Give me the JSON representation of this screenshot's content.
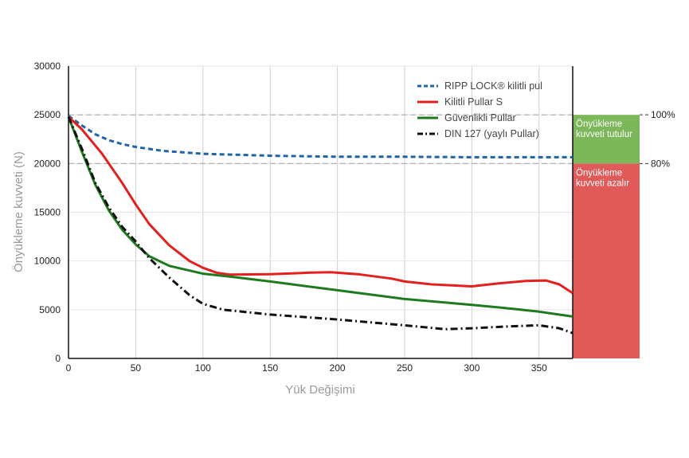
{
  "chart_data": {
    "type": "line",
    "xlabel": "Yük Değişimi",
    "ylabel": "Önyükleme kuvveti (N)",
    "xlim": [
      0,
      375
    ],
    "ylim": [
      0,
      30000
    ],
    "x_ticks": [
      "0",
      "50",
      "100",
      "150",
      "200",
      "250",
      "300",
      "350"
    ],
    "y_ticks": [
      "0",
      "5000",
      "10000",
      "15000",
      "20000",
      "25000",
      "30000"
    ],
    "grid": true,
    "legend_position": "top-right",
    "series": [
      {
        "name": "RIPP LOCK® kilitli pul",
        "color": "#1f63a8",
        "style": "dashed",
        "points": [
          [
            0,
            24900
          ],
          [
            10,
            23900
          ],
          [
            20,
            23000
          ],
          [
            30,
            22400
          ],
          [
            40,
            22000
          ],
          [
            50,
            21700
          ],
          [
            70,
            21300
          ],
          [
            100,
            21000
          ],
          [
            150,
            20800
          ],
          [
            200,
            20700
          ],
          [
            250,
            20700
          ],
          [
            300,
            20650
          ],
          [
            350,
            20650
          ],
          [
            375,
            20650
          ]
        ]
      },
      {
        "name": "Kilitli Pullar S",
        "color": "#e3201e",
        "style": "solid",
        "points": [
          [
            0,
            24800
          ],
          [
            10,
            23500
          ],
          [
            25,
            21000
          ],
          [
            40,
            18000
          ],
          [
            50,
            15800
          ],
          [
            60,
            13800
          ],
          [
            75,
            11600
          ],
          [
            90,
            10000
          ],
          [
            100,
            9300
          ],
          [
            110,
            8800
          ],
          [
            120,
            8600
          ],
          [
            150,
            8650
          ],
          [
            180,
            8800
          ],
          [
            195,
            8850
          ],
          [
            215,
            8650
          ],
          [
            240,
            8200
          ],
          [
            250,
            7900
          ],
          [
            270,
            7600
          ],
          [
            300,
            7400
          ],
          [
            320,
            7700
          ],
          [
            340,
            7950
          ],
          [
            355,
            8000
          ],
          [
            365,
            7600
          ],
          [
            375,
            6700
          ]
        ]
      },
      {
        "name": "Güvenlikli Pullar",
        "color": "#1e7a1e",
        "style": "solid",
        "points": [
          [
            0,
            24800
          ],
          [
            10,
            21200
          ],
          [
            20,
            17800
          ],
          [
            30,
            15200
          ],
          [
            40,
            13200
          ],
          [
            50,
            11700
          ],
          [
            60,
            10500
          ],
          [
            75,
            9500
          ],
          [
            100,
            8700
          ],
          [
            120,
            8400
          ],
          [
            150,
            7900
          ],
          [
            200,
            7000
          ],
          [
            250,
            6100
          ],
          [
            300,
            5500
          ],
          [
            330,
            5100
          ],
          [
            350,
            4800
          ],
          [
            375,
            4300
          ]
        ]
      },
      {
        "name": "DIN 127 (yaylı Pullar)",
        "color": "#111111",
        "style": "dashdot",
        "points": [
          [
            0,
            24800
          ],
          [
            10,
            21500
          ],
          [
            20,
            18000
          ],
          [
            30,
            15500
          ],
          [
            40,
            13500
          ],
          [
            50,
            12000
          ],
          [
            60,
            10300
          ],
          [
            75,
            8300
          ],
          [
            90,
            6500
          ],
          [
            100,
            5600
          ],
          [
            115,
            5000
          ],
          [
            150,
            4500
          ],
          [
            200,
            4000
          ],
          [
            250,
            3400
          ],
          [
            280,
            3000
          ],
          [
            300,
            3100
          ],
          [
            330,
            3300
          ],
          [
            350,
            3400
          ],
          [
            365,
            3100
          ],
          [
            375,
            2600
          ]
        ]
      }
    ],
    "reference_lines": [
      {
        "y": 25000,
        "label": "100%"
      },
      {
        "y": 20000,
        "label": "80%"
      }
    ],
    "bands": [
      {
        "y_from": 20000,
        "y_to": 25000,
        "label_lines": [
          "Önyükleme",
          "kuvveti tutulur"
        ],
        "color": "#7cb85a"
      },
      {
        "y_from": 0,
        "y_to": 20000,
        "label_lines": [
          "Önyükleme",
          "kuvveti azalır"
        ],
        "color": "#e05a5a"
      }
    ]
  }
}
